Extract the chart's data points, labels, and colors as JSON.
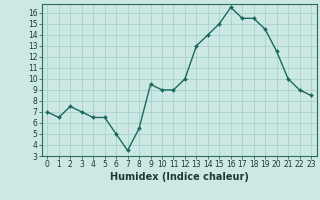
{
  "x": [
    0,
    1,
    2,
    3,
    4,
    5,
    6,
    7,
    8,
    9,
    10,
    11,
    12,
    13,
    14,
    15,
    16,
    17,
    18,
    19,
    20,
    21,
    22,
    23
  ],
  "y": [
    7.0,
    6.5,
    7.5,
    7.0,
    6.5,
    6.5,
    5.0,
    3.5,
    5.5,
    9.5,
    9.0,
    9.0,
    10.0,
    13.0,
    14.0,
    15.0,
    16.5,
    15.5,
    15.5,
    14.5,
    12.5,
    10.0,
    9.0,
    8.5
  ],
  "line_color": "#1a6b5a",
  "marker": "D",
  "marker_size": 2.0,
  "line_width": 1.0,
  "bg_color": "#cce8e4",
  "grid_color": "#aad0ca",
  "xlabel": "Humidex (Indice chaleur)",
  "ylabel": "",
  "title": "",
  "xlim": [
    -0.5,
    23.5
  ],
  "ylim": [
    3,
    16.8
  ],
  "yticks": [
    3,
    4,
    5,
    6,
    7,
    8,
    9,
    10,
    11,
    12,
    13,
    14,
    15,
    16
  ],
  "xticks": [
    0,
    1,
    2,
    3,
    4,
    5,
    6,
    7,
    8,
    9,
    10,
    11,
    12,
    13,
    14,
    15,
    16,
    17,
    18,
    19,
    20,
    21,
    22,
    23
  ],
  "tick_label_fontsize": 5.5,
  "xlabel_fontsize": 7.0,
  "axis_label_color": "#1a3a35",
  "spine_color": "#2a6b5a",
  "tick_color": "#2a6b5a"
}
